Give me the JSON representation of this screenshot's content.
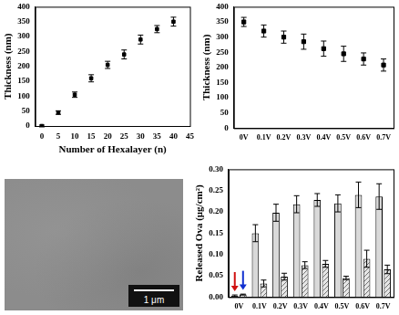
{
  "chart_data": [
    {
      "type": "scatter",
      "x_label": "Number of Hexalayer (n)",
      "y_label": "Thickness (nm)",
      "x": [
        0,
        5,
        10,
        15,
        20,
        25,
        30,
        35,
        40
      ],
      "values": [
        0,
        45,
        105,
        160,
        205,
        240,
        290,
        325,
        350
      ],
      "errors": [
        3,
        6,
        9,
        12,
        12,
        15,
        15,
        12,
        15
      ],
      "color": "#000000",
      "marker": "square",
      "xlim": [
        -2,
        45
      ],
      "xticks": [
        0,
        5,
        10,
        15,
        20,
        25,
        30,
        35,
        40,
        45
      ],
      "ylim": [
        0,
        400
      ],
      "yticks": [
        0,
        50,
        100,
        150,
        200,
        250,
        300,
        350,
        400
      ],
      "grid": false
    },
    {
      "type": "scatter",
      "y_label": "Thickness (nm)",
      "categories": [
        "0V",
        "0.1V",
        "0.2V",
        "0.3V",
        "0.4V",
        "0.5V",
        "0.6V",
        "0.7V"
      ],
      "values": [
        350,
        320,
        300,
        285,
        262,
        245,
        228,
        208
      ],
      "errors": [
        15,
        20,
        20,
        25,
        25,
        25,
        20,
        20
      ],
      "color": "#000000",
      "marker": "square",
      "ylim": [
        0,
        400
      ],
      "yticks": [
        0,
        50,
        100,
        150,
        200,
        250,
        300,
        350,
        400
      ],
      "grid": false
    },
    {
      "type": "bar",
      "y_label": "Released Ova (μg/cm²)",
      "categories": [
        "0V",
        "0.1V",
        "0.2V",
        "0.3V",
        "0.4V",
        "0.5V",
        "0.6V",
        "0.7V"
      ],
      "series": [
        {
          "color": "#d9d9d9",
          "marker": "plain",
          "values": [
            0.003,
            0.15,
            0.198,
            0.218,
            0.228,
            0.22,
            0.24,
            0.236
          ],
          "errors": [
            0.002,
            0.02,
            0.02,
            0.02,
            0.015,
            0.02,
            0.03,
            0.03
          ]
        },
        {
          "color": "#e6e6e6",
          "marker": "hatched",
          "values": [
            0.006,
            0.032,
            0.048,
            0.075,
            0.078,
            0.045,
            0.09,
            0.065
          ],
          "errors": [
            0.001,
            0.008,
            0.008,
            0.008,
            0.008,
            0.004,
            0.02,
            0.01
          ]
        }
      ],
      "ylim": [
        0,
        0.3
      ],
      "yticks": [
        {
          "value": 0,
          "label": "0.00"
        },
        {
          "value": 0.05,
          "label": "0.05"
        },
        {
          "value": 0.1,
          "label": "0.10"
        },
        {
          "value": 0.15,
          "label": "0.15"
        },
        {
          "value": 0.2,
          "label": "0.20"
        },
        {
          "value": 0.25,
          "label": "0.25"
        },
        {
          "value": 0.3,
          "label": "0.30"
        }
      ],
      "grid": false
    }
  ],
  "image": {
    "scale_bar": "1 μm"
  }
}
